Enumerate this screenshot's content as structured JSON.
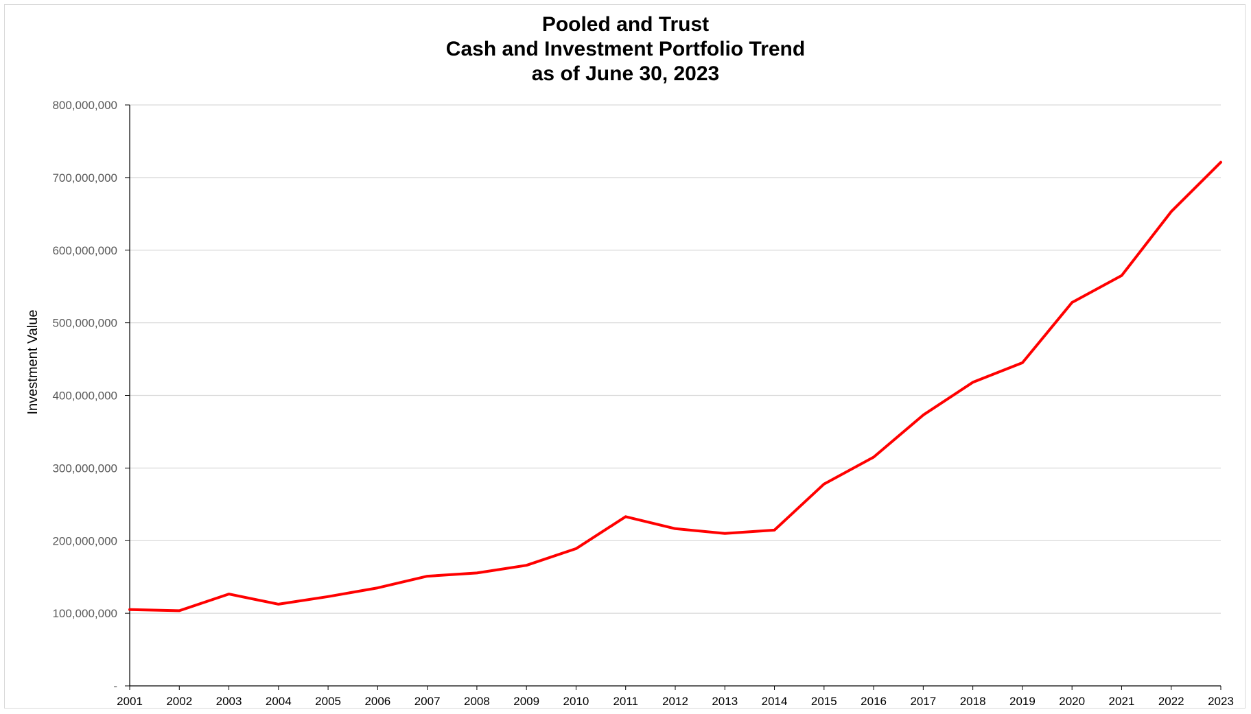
{
  "chart_data": {
    "type": "line",
    "title_lines": [
      "Pooled and Trust",
      "Cash and Investment Portfolio Trend",
      "as of June 30, 2023"
    ],
    "xlabel": "",
    "ylabel": "Investment Value",
    "ylim": [
      0,
      800000000
    ],
    "y_ticks": [
      {
        "value": 0,
        "label": "-"
      },
      {
        "value": 100000000,
        "label": "100,000,000"
      },
      {
        "value": 200000000,
        "label": "200,000,000"
      },
      {
        "value": 300000000,
        "label": "300,000,000"
      },
      {
        "value": 400000000,
        "label": "400,000,000"
      },
      {
        "value": 500000000,
        "label": "500,000,000"
      },
      {
        "value": 600000000,
        "label": "600,000,000"
      },
      {
        "value": 700000000,
        "label": "700,000,000"
      },
      {
        "value": 800000000,
        "label": "800,000,000"
      }
    ],
    "categories": [
      "2001",
      "2002",
      "2003",
      "2004",
      "2005",
      "2006",
      "2007",
      "2008",
      "2009",
      "2010",
      "2011",
      "2012",
      "2013",
      "2014",
      "2015",
      "2016",
      "2017",
      "2018",
      "2019",
      "2020",
      "2021",
      "2022",
      "2023"
    ],
    "series": [
      {
        "color": "#ff0000",
        "values": [
          105000000,
          103500000,
          126500000,
          112500000,
          123000000,
          135000000,
          151000000,
          155500000,
          166000000,
          189000000,
          233000000,
          216500000,
          210000000,
          214500000,
          278000000,
          315000000,
          373000000,
          418000000,
          445000000,
          528000000,
          565000000,
          653000000,
          721000000
        ]
      }
    ],
    "grid": true,
    "gridline_color": "#d9d9d9",
    "legend": "none"
  }
}
